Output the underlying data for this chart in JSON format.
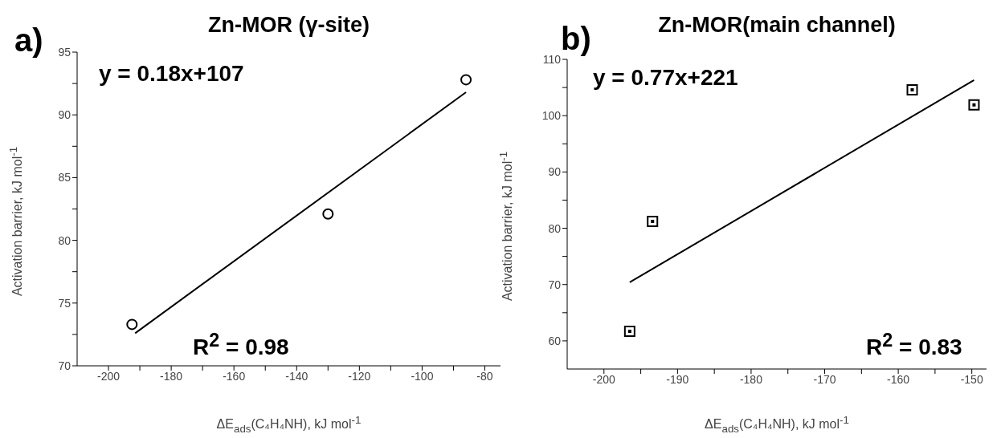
{
  "chart_data": [
    {
      "type": "scatter",
      "title": "Zn-MOR (γ-site)",
      "xlabel": "ΔE$_{ads}$(C₄H₄NH), kJ mol$^{-1}$",
      "ylabel": "Activation barrier, kJ mol$^{-1}$",
      "annotations": [
        "a)",
        "y = 0.18x+107",
        "R$^{2}$ = 0.98"
      ],
      "xlim": [
        -210,
        -75
      ],
      "xticks": [
        -200,
        {
          "value": -190,
          "label": null
        },
        -180,
        {
          "value": -170,
          "label": null
        },
        -160,
        {
          "value": -150,
          "label": null
        },
        -140,
        {
          "value": -130,
          "label": null
        },
        -120,
        {
          "value": -110,
          "label": null
        },
        -100,
        {
          "value": -90,
          "label": null
        },
        -80
      ],
      "ylim": [
        70,
        95
      ],
      "yticks": [
        70,
        {
          "value": 72.5,
          "label": null
        },
        75,
        {
          "value": 77.5,
          "label": null
        },
        80,
        {
          "value": 82.5,
          "label": null
        },
        85,
        {
          "value": 87.5,
          "label": null
        },
        90,
        {
          "value": 92.5,
          "label": null
        },
        95
      ],
      "series": [
        {
          "marker": "circle",
          "color": "#000000",
          "x": [
            -192.5,
            -130,
            -86
          ],
          "values": [
            73.3,
            82.1,
            92.8
          ]
        },
        {
          "type": "line",
          "marker": "none",
          "color": "#000000",
          "x": [
            -191.5,
            -86
          ],
          "values": [
            72.6,
            91.8
          ]
        }
      ]
    },
    {
      "type": "scatter",
      "title": "Zn-MOR(main channel)",
      "xlabel": "ΔE$_{ads}$(C₄H₄NH), kJ mol$^{-1}$",
      "ylabel": "Activation barrier, kJ mol$^{-1}$",
      "annotations": [
        "b)",
        "y = 0.77x+221",
        "R$^{2}$ = 0.83"
      ],
      "xlim": [
        -205,
        -148
      ],
      "xticks": [
        -200,
        {
          "value": -195,
          "label": null
        },
        -190,
        {
          "value": -185,
          "label": null
        },
        -180,
        {
          "value": -175,
          "label": null
        },
        -170,
        {
          "value": -165,
          "label": null
        },
        -160,
        {
          "value": -155,
          "label": null
        },
        -150
      ],
      "ylim": [
        55,
        110
      ],
      "yticks": [
        60,
        {
          "value": 65,
          "label": null
        },
        70,
        {
          "value": 75,
          "label": null
        },
        80,
        {
          "value": 85,
          "label": null
        },
        90,
        {
          "value": 95,
          "label": null
        },
        100,
        {
          "value": 105,
          "label": null
        },
        110
      ],
      "series": [
        {
          "marker": "square",
          "color": "#000000",
          "x": [
            -196.5,
            -193.4,
            -158.1,
            -149.7
          ],
          "values": [
            61.7,
            81.2,
            104.6,
            101.9
          ]
        },
        {
          "type": "line",
          "marker": "none",
          "color": "#000000",
          "x": [
            -196.5,
            -149.7
          ],
          "values": [
            70.4,
            106.3
          ]
        }
      ]
    }
  ]
}
